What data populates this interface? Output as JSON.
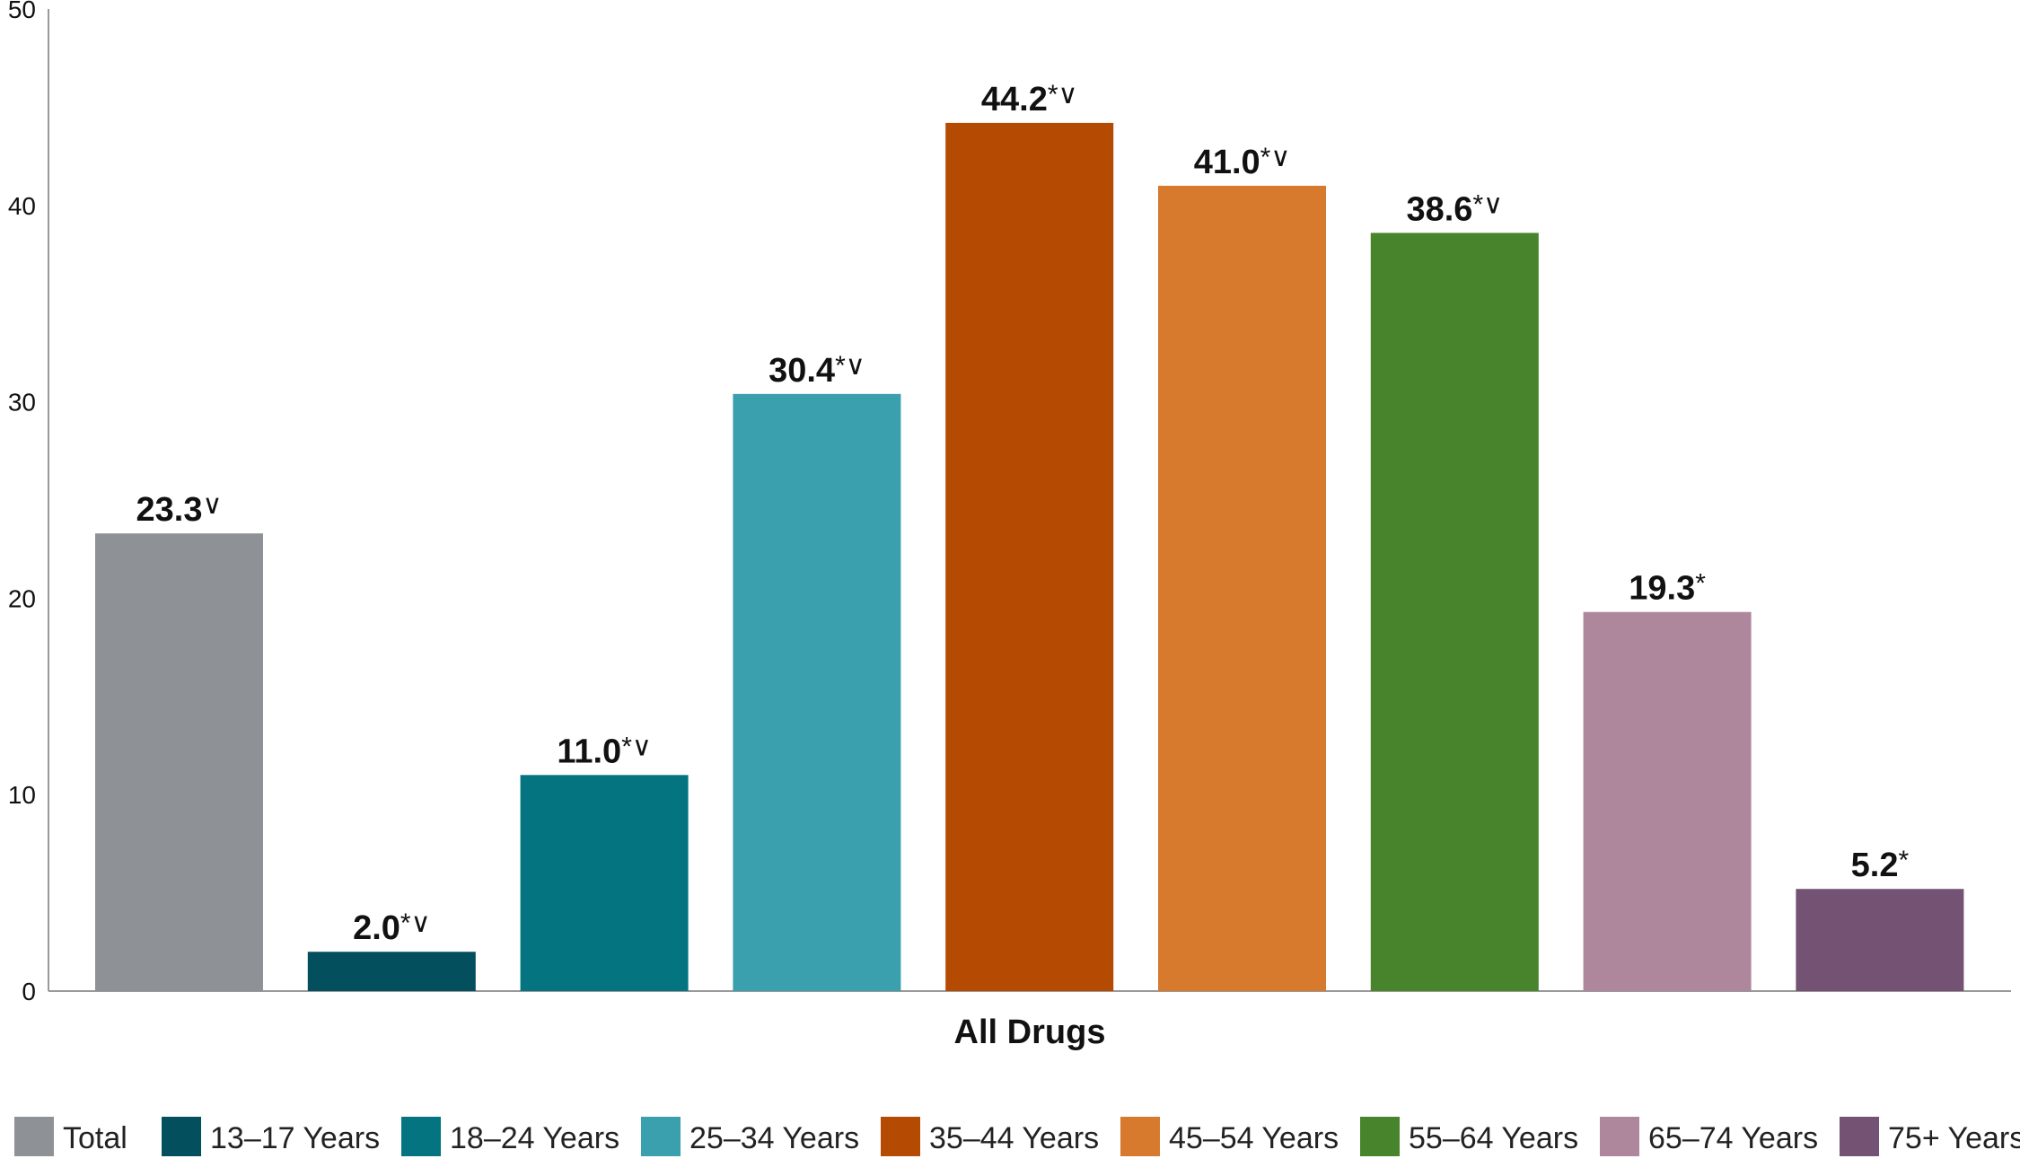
{
  "chart_data": {
    "type": "bar",
    "xlabel": "All Drugs",
    "ylabel": "",
    "ylim": [
      0,
      50
    ],
    "yticks": [
      0,
      10,
      20,
      30,
      40,
      50
    ],
    "grid": false,
    "legend_position": "bottom",
    "categories": [
      "Total",
      "13–17 Years",
      "18–24 Years",
      "25–34 Years",
      "35–44 Years",
      "45–54 Years",
      "55–64 Years",
      "65–74 Years",
      "75+ Years"
    ],
    "values": [
      23.3,
      2.0,
      11.0,
      30.4,
      44.2,
      41.0,
      38.6,
      19.3,
      5.2
    ],
    "data_labels": [
      "23.3",
      "2.0",
      "11.0",
      "30.4",
      "44.2",
      "41.0",
      "38.6",
      "19.3",
      "5.2"
    ],
    "label_marks": [
      "∨",
      "*∨",
      "*∨",
      "*∨",
      "*∨",
      "*∨",
      "*∨",
      "*",
      "*"
    ],
    "colors": [
      "#8e9196",
      "#034f5e",
      "#037480",
      "#3aa0ad",
      "#b54b03",
      "#d87a2e",
      "#47842b",
      "#ae879c",
      "#735274"
    ]
  }
}
